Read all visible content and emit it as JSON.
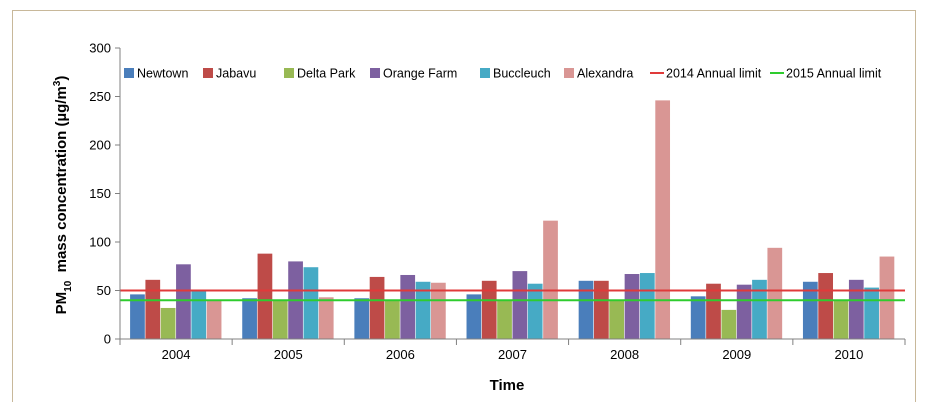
{
  "chart_data": {
    "type": "bar",
    "categories": [
      "2004",
      "2005",
      "2006",
      "2007",
      "2008",
      "2009",
      "2010"
    ],
    "series": [
      {
        "name": "Newtown",
        "color": "#4a7ebb",
        "values": [
          46,
          42,
          42,
          46,
          60,
          44,
          59
        ]
      },
      {
        "name": "Jabavu",
        "color": "#be4b48",
        "values": [
          61,
          88,
          64,
          60,
          60,
          57,
          68
        ]
      },
      {
        "name": "Delta Park",
        "color": "#98b954",
        "values": [
          32,
          40,
          40,
          40,
          40,
          30,
          40
        ]
      },
      {
        "name": "Orange Farm",
        "color": "#7d60a0",
        "values": [
          77,
          80,
          66,
          70,
          67,
          56,
          61
        ]
      },
      {
        "name": "Buccleuch",
        "color": "#46aac5",
        "values": [
          51,
          74,
          59,
          57,
          68,
          61,
          53
        ]
      },
      {
        "name": "Alexandra",
        "color": "#d99694",
        "values": [
          40,
          43,
          58,
          122,
          246,
          94,
          85
        ]
      }
    ],
    "reference_lines": [
      {
        "name": "2014 Annual limit",
        "color": "#e03a3a",
        "value": 50
      },
      {
        "name": "2015 Annual limit",
        "color": "#2ecc2e",
        "value": 40
      }
    ],
    "ylim": [
      0,
      300
    ],
    "yticks": [
      0,
      50,
      100,
      150,
      200,
      250,
      300
    ],
    "ylabel_main": "PM",
    "ylabel_sub": "10",
    "ylabel_rest": "  mass concentration (µg/m",
    "ylabel_sup": "3",
    "ylabel_end": ")",
    "xlabel": "Time",
    "grid": false,
    "legend_position": "top"
  }
}
